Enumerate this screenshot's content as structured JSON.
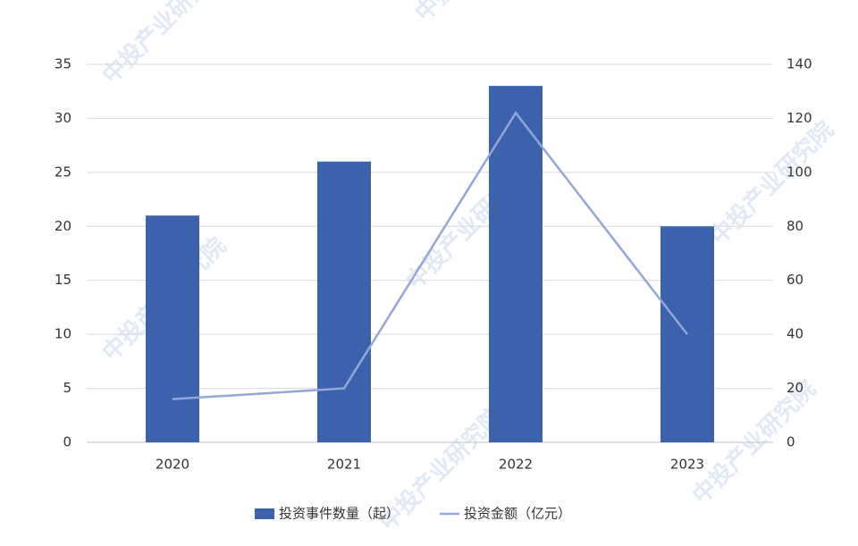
{
  "chart_data": {
    "type": "bar",
    "categories": [
      "2020",
      "2021",
      "2022",
      "2023"
    ],
    "series": [
      {
        "name": "投资事件数量（起）",
        "type": "bar",
        "color": "#3d62ad",
        "values": [
          21,
          26,
          33,
          20
        ]
      },
      {
        "name": "投资金额（亿元）",
        "type": "line",
        "axis": "y2",
        "color": "#91a7d8",
        "values": [
          16,
          20,
          122,
          40
        ]
      }
    ],
    "ylim": [
      0,
      35
    ],
    "yticks": [
      0,
      5,
      10,
      15,
      20,
      25,
      30,
      35
    ],
    "y2lim": [
      0,
      140
    ],
    "y2ticks": [
      0,
      20,
      40,
      60,
      80,
      100,
      120,
      140
    ],
    "grid": true,
    "legend": "bottom",
    "watermark": "中投产业研究院"
  }
}
